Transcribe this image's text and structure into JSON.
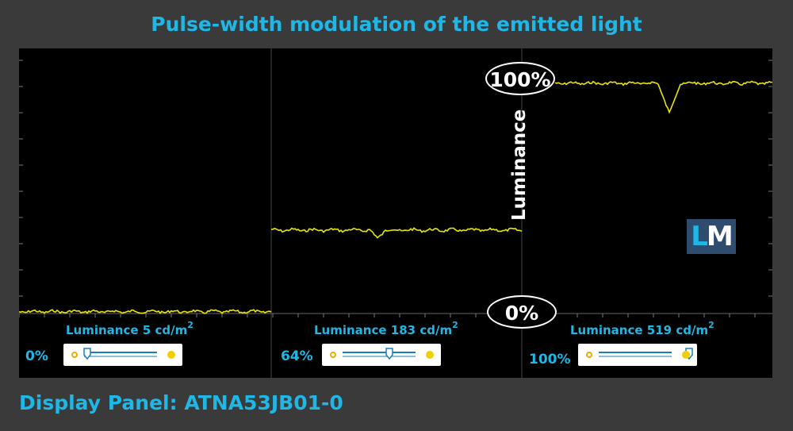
{
  "title": "Pulse-width modulation of the emitted light",
  "footer": "Display Panel: ATNA53JB01-0",
  "labels": {
    "top_marker": "100%",
    "bottom_marker": "0%",
    "axis": "Luminance",
    "logo_l": "L",
    "logo_m": "M"
  },
  "segments": [
    {
      "luminance_prefix": "Luminance",
      "luminance_value": "5 cd/m",
      "sup": "2",
      "brightness": "0%"
    },
    {
      "luminance_prefix": "Luminance",
      "luminance_value": "183 cd/m",
      "sup": "2",
      "brightness": "64%"
    },
    {
      "luminance_prefix": "Luminance",
      "luminance_value": "519 cd/m",
      "sup": "2",
      "brightness": "100%"
    }
  ],
  "colors": {
    "trace": "#e8e600",
    "accent": "#1fb7e6",
    "grid": "#444444",
    "background": "#000000"
  },
  "chart_data": {
    "type": "line",
    "y_unit": "% of max luminance",
    "ylim": [
      0,
      100
    ],
    "series": [
      {
        "brightness": "0%",
        "luminance_cd_m2": 5,
        "level": 0.8
      },
      {
        "brightness": "64%",
        "luminance_cd_m2": 183,
        "level": 35.5
      },
      {
        "brightness": "100%",
        "luminance_cd_m2": 519,
        "level": 98
      }
    ]
  }
}
